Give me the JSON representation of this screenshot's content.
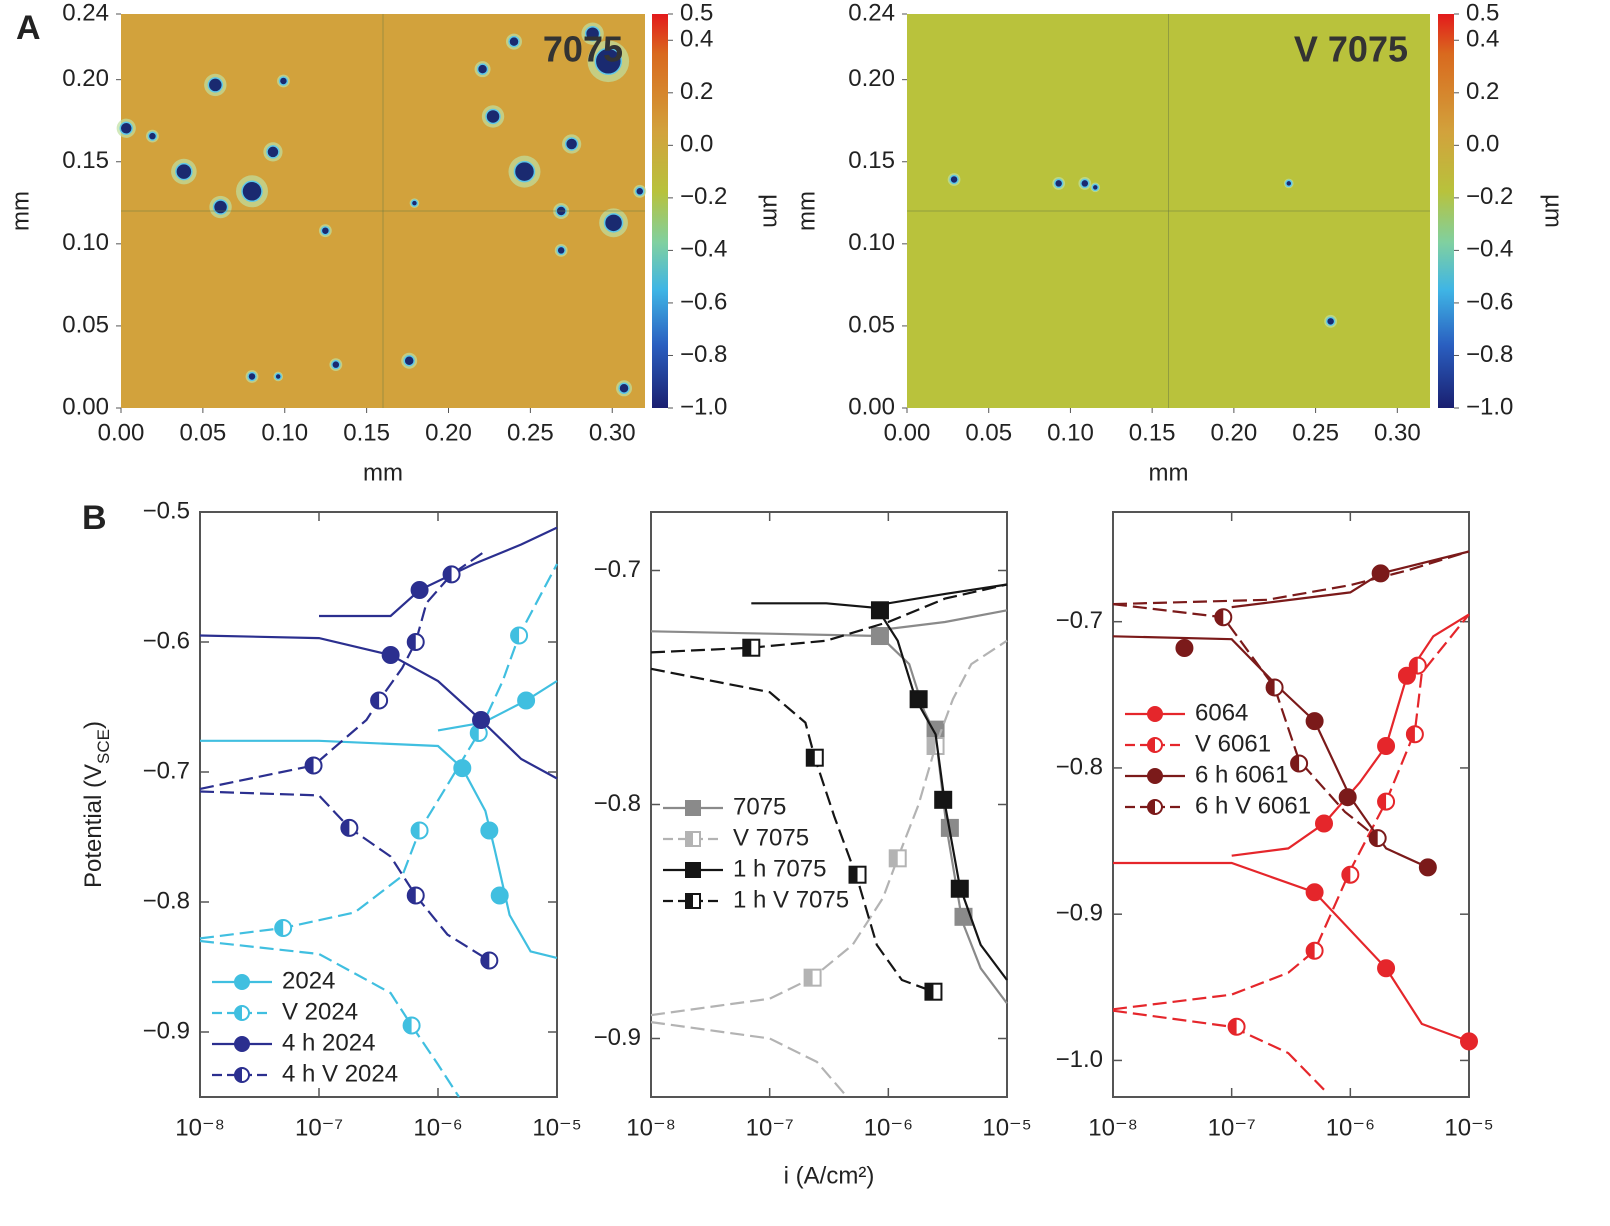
{
  "panels": [
    "A",
    "B"
  ],
  "chart_data": [
    {
      "type": "surface-map",
      "title": "7075",
      "xlabel": "mm",
      "ylabel": "mm",
      "color": "#d2a23c",
      "xlim": [
        0,
        0.32
      ],
      "ylim": [
        0,
        0.24
      ],
      "xticks": [
        {
          "value": 0,
          "label": "0.00"
        },
        0.05,
        {
          "value": 0.1,
          "label": "0.10"
        },
        0.15,
        {
          "value": 0.2,
          "label": "0.20"
        },
        0.25,
        {
          "value": 0.3,
          "label": "0.30"
        }
      ],
      "yticks": [
        {
          "value": 0,
          "label": "0.00"
        },
        0.05,
        {
          "value": 0.1,
          "label": "0.10"
        },
        0.15,
        {
          "value": 0.2,
          "label": "0.20"
        },
        0.24
      ],
      "colorbar": {
        "label": "µm",
        "lim": [
          -1,
          0.5
        ],
        "ticks": [
          0.5,
          0.4,
          0.2,
          {
            "value": 0,
            "label": "0.0"
          },
          {
            "value": -0.2,
            "label": "−0.2"
          },
          {
            "value": -0.4,
            "label": "−0.4"
          },
          {
            "value": -0.6,
            "label": "−0.6"
          },
          {
            "value": -0.8,
            "label": "−0.8"
          },
          {
            "value": -1,
            "label": "−1.0"
          }
        ]
      }
    },
    {
      "type": "surface-map",
      "title": "V 7075",
      "xlabel": "mm",
      "ylabel": "mm",
      "color": "#b9c23c",
      "xlim": [
        0,
        0.32
      ],
      "ylim": [
        0,
        0.24
      ],
      "xticks": [
        {
          "value": 0,
          "label": "0.00"
        },
        0.05,
        {
          "value": 0.1,
          "label": "0.10"
        },
        0.15,
        {
          "value": 0.2,
          "label": "0.20"
        },
        0.25,
        {
          "value": 0.3,
          "label": "0.30"
        }
      ],
      "yticks": [
        {
          "value": 0,
          "label": "0.00"
        },
        0.05,
        {
          "value": 0.1,
          "label": "0.10"
        },
        0.15,
        {
          "value": 0.2,
          "label": "0.20"
        },
        0.24
      ],
      "colorbar": {
        "label": "µm",
        "lim": [
          -1,
          0.5
        ],
        "ticks": [
          0.5,
          0.4,
          0.2,
          {
            "value": 0,
            "label": "0.0"
          },
          {
            "value": -0.2,
            "label": "−0.2"
          },
          {
            "value": -0.4,
            "label": "−0.4"
          },
          {
            "value": -0.6,
            "label": "−0.6"
          },
          {
            "value": -0.8,
            "label": "−0.8"
          },
          {
            "value": -1,
            "label": "−1.0"
          }
        ]
      }
    },
    {
      "type": "polarization",
      "xscale": "log",
      "ylabel": [
        "Potential (V",
        "SCE",
        ")"
      ],
      "legend": "lower left",
      "xlim": [
        1e-08,
        1e-05
      ],
      "ylim": [
        -0.95,
        -0.5
      ],
      "xticks": [
        {
          "value": 1e-08,
          "label": "10⁻⁸"
        },
        {
          "value": 1e-07,
          "label": "10⁻⁷"
        },
        {
          "value": 1e-06,
          "label": "10⁻⁶"
        },
        {
          "value": 1e-05,
          "label": "10⁻⁵"
        }
      ],
      "yticks": [
        {
          "value": -0.5,
          "label": "−0.5"
        },
        {
          "value": -0.6,
          "label": "−0.6"
        },
        {
          "value": -0.7,
          "label": "−0.7"
        },
        {
          "value": -0.8,
          "label": "−0.8"
        },
        {
          "value": -0.9,
          "label": "−0.9"
        }
      ],
      "series": [
        {
          "name": "2024",
          "color": "#40bfe0",
          "dash": false,
          "marker": "circle",
          "fill": "filled",
          "x": [
            1e-08,
            1e-07,
            1e-06,
            1.6e-06,
            2.5e-06,
            3e-06,
            4e-06,
            6e-06,
            1e-05,
            null,
            1e-06,
            2.4e-06,
            5.5e-06,
            1e-05
          ],
          "values": [
            -0.676,
            -0.676,
            -0.68,
            -0.697,
            -0.73,
            -0.76,
            -0.81,
            -0.838,
            -0.843,
            null,
            -0.668,
            -0.662,
            -0.645,
            -0.63
          ],
          "marker_x": [
            1.6e-06,
            2.7e-06,
            3.3e-06,
            5.5e-06
          ],
          "marker_values": [
            -0.697,
            -0.745,
            -0.795,
            -0.645
          ]
        },
        {
          "name": "V 2024",
          "color": "#40bfe0",
          "dash": true,
          "marker": "circle",
          "fill": "half",
          "x": [
            1e-08,
            5e-08,
            2e-07,
            5e-07,
            7e-07,
            1.2e-06,
            2.2e-06,
            3.5e-06,
            4.8e-06,
            1e-05,
            null,
            1e-08,
            1e-07,
            4e-07,
            6e-07,
            1e-06,
            1.5e-06
          ],
          "values": [
            -0.828,
            -0.82,
            -0.808,
            -0.78,
            -0.745,
            -0.71,
            -0.67,
            -0.63,
            -0.595,
            -0.54,
            null,
            -0.83,
            -0.84,
            -0.87,
            -0.895,
            -0.925,
            -0.95
          ],
          "marker_x": [
            5e-08,
            7e-07,
            2.2e-06,
            4.8e-06,
            6e-07
          ],
          "marker_values": [
            -0.82,
            -0.745,
            -0.67,
            -0.595,
            -0.895
          ]
        },
        {
          "name": "4 h 2024",
          "color": "#2b2f8f",
          "dash": false,
          "marker": "circle",
          "fill": "filled",
          "x": [
            1e-08,
            1e-07,
            4e-07,
            1e-06,
            2.3e-06,
            5e-06,
            1e-05,
            null,
            1e-07,
            4e-07,
            7e-07,
            2e-06,
            5e-06,
            1e-05
          ],
          "values": [
            -0.595,
            -0.597,
            -0.61,
            -0.63,
            -0.66,
            -0.69,
            -0.705,
            null,
            -0.58,
            -0.58,
            -0.56,
            -0.54,
            -0.525,
            -0.512
          ],
          "marker_x": [
            4e-07,
            2.3e-06,
            7e-07
          ],
          "marker_values": [
            -0.61,
            -0.66,
            -0.56
          ]
        },
        {
          "name": "4 h V 2024",
          "color": "#2b2f8f",
          "dash": true,
          "marker": "circle",
          "fill": "half",
          "x": [
            1e-08,
            1e-07,
            1.8e-07,
            4e-07,
            6.5e-07,
            1.2e-06,
            2.7e-06,
            null,
            1e-08,
            9e-08,
            2.5e-07,
            3.2e-07,
            5e-07,
            6.5e-07,
            8e-07,
            1.3e-06,
            2.5e-06
          ],
          "values": [
            -0.715,
            -0.718,
            -0.743,
            -0.765,
            -0.795,
            -0.825,
            -0.845,
            null,
            -0.713,
            -0.695,
            -0.66,
            -0.645,
            -0.62,
            -0.6,
            -0.57,
            -0.548,
            -0.53
          ],
          "marker_x": [
            1.8e-07,
            6.5e-07,
            2.7e-06,
            9e-08,
            3.2e-07,
            6.5e-07,
            1.3e-06
          ],
          "marker_values": [
            -0.743,
            -0.795,
            -0.845,
            -0.695,
            -0.645,
            -0.6,
            -0.548
          ]
        }
      ]
    },
    {
      "type": "polarization",
      "xscale": "log",
      "xlabel": "i (A/cm²)",
      "legend": "center left",
      "xlim": [
        1e-08,
        1e-05
      ],
      "ylim": [
        -0.925,
        -0.675
      ],
      "xticks": [
        {
          "value": 1e-08,
          "label": "10⁻⁸"
        },
        {
          "value": 1e-07,
          "label": "10⁻⁷"
        },
        {
          "value": 1e-06,
          "label": "10⁻⁶"
        },
        {
          "value": 1e-05,
          "label": "10⁻⁵"
        }
      ],
      "yticks": [
        {
          "value": -0.7,
          "label": "−0.7"
        },
        {
          "value": -0.8,
          "label": "−0.8"
        },
        {
          "value": -0.9,
          "label": "−0.9"
        }
      ],
      "series": [
        {
          "name": "7075",
          "color": "#8a8a8a",
          "dash": false,
          "marker": "square",
          "fill": "filled",
          "x": [
            1e-08,
            1e-07,
            8.5e-07,
            1.5e-06,
            2e-06,
            2.5e-06,
            3.1e-06,
            4.2e-06,
            6e-06,
            1e-05,
            null,
            1e-06,
            3e-06,
            1e-05
          ],
          "values": [
            -0.726,
            -0.727,
            -0.728,
            -0.74,
            -0.76,
            -0.77,
            -0.81,
            -0.85,
            -0.87,
            -0.885,
            null,
            -0.725,
            -0.722,
            -0.717
          ],
          "marker_x": [
            8.5e-07,
            2.5e-06,
            3.3e-06,
            4.3e-06
          ],
          "marker_values": [
            -0.728,
            -0.768,
            -0.81,
            -0.848
          ]
        },
        {
          "name": "V 7075",
          "color": "#b3b3b3",
          "dash": true,
          "marker": "square",
          "fill": "half",
          "x": [
            1e-08,
            1e-07,
            2.3e-07,
            5e-07,
            9e-07,
            1.2e-06,
            1.8e-06,
            2.5e-06,
            3.5e-06,
            5e-06,
            1e-05,
            null,
            1e-08,
            1e-07,
            2.5e-07,
            4.5e-07
          ],
          "values": [
            -0.89,
            -0.883,
            -0.874,
            -0.86,
            -0.84,
            -0.823,
            -0.8,
            -0.775,
            -0.755,
            -0.74,
            -0.73,
            null,
            -0.893,
            -0.9,
            -0.91,
            -0.925
          ],
          "marker_x": [
            2.3e-07,
            1.2e-06,
            2.5e-06
          ],
          "marker_values": [
            -0.874,
            -0.823,
            -0.775
          ]
        },
        {
          "name": "1 h 7075",
          "color": "#151515",
          "dash": false,
          "marker": "square",
          "fill": "filled",
          "x": [
            7e-08,
            3e-07,
            8e-07,
            1.2e-06,
            1.7e-06,
            2.5e-06,
            3e-06,
            4e-06,
            6e-06,
            1e-05,
            null,
            1e-06,
            3e-06,
            1e-05
          ],
          "values": [
            -0.714,
            -0.714,
            -0.716,
            -0.73,
            -0.755,
            -0.77,
            -0.8,
            -0.835,
            -0.86,
            -0.875,
            null,
            -0.714,
            -0.71,
            -0.706
          ],
          "marker_x": [
            8.5e-07,
            1.8e-06,
            2.9e-06,
            4e-06
          ],
          "marker_values": [
            -0.717,
            -0.755,
            -0.798,
            -0.836
          ]
        },
        {
          "name": "1 h V 7075",
          "color": "#151515",
          "dash": true,
          "marker": "square",
          "fill": "half",
          "x": [
            1e-08,
            7e-08,
            3e-07,
            1e-06,
            3e-06,
            1e-05,
            null,
            1e-08,
            1e-07,
            2e-07,
            2.4e-07,
            3.5e-07,
            5.5e-07,
            8e-07,
            1.3e-06,
            2.4e-06
          ],
          "values": [
            -0.735,
            -0.733,
            -0.73,
            -0.722,
            -0.712,
            -0.706,
            null,
            -0.742,
            -0.752,
            -0.765,
            -0.78,
            -0.805,
            -0.832,
            -0.86,
            -0.875,
            -0.88
          ],
          "marker_x": [
            7e-08,
            2.4e-07,
            5.5e-07,
            2.4e-06
          ],
          "marker_values": [
            -0.733,
            -0.78,
            -0.83,
            -0.88
          ]
        }
      ]
    },
    {
      "type": "polarization",
      "xscale": "log",
      "legend": "upper left",
      "xlim": [
        1e-08,
        1e-05
      ],
      "ylim": [
        -1.025,
        -0.625
      ],
      "xticks": [
        {
          "value": 1e-08,
          "label": "10⁻⁸"
        },
        {
          "value": 1e-07,
          "label": "10⁻⁷"
        },
        {
          "value": 1e-06,
          "label": "10⁻⁶"
        },
        {
          "value": 1e-05,
          "label": "10⁻⁵"
        }
      ],
      "yticks": [
        {
          "value": -0.7,
          "label": "−0.7"
        },
        {
          "value": -0.8,
          "label": "−0.8"
        },
        {
          "value": -0.9,
          "label": "−0.9"
        },
        {
          "value": -1,
          "label": "−1.0"
        }
      ],
      "series": [
        {
          "name": "6064",
          "color": "#e5262b",
          "dash": false,
          "marker": "circle",
          "fill": "filled",
          "x": [
            1e-08,
            1e-07,
            5e-07,
            2e-06,
            4e-06,
            1e-05,
            null,
            1e-07,
            3e-07,
            6e-07,
            1.2e-06,
            2e-06,
            3e-06,
            5e-06,
            1e-05
          ],
          "values": [
            -0.865,
            -0.865,
            -0.885,
            -0.937,
            -0.975,
            -0.987,
            null,
            -0.86,
            -0.855,
            -0.838,
            -0.81,
            -0.785,
            -0.737,
            -0.71,
            -0.695
          ],
          "marker_x": [
            5e-07,
            2e-06,
            1e-05,
            6e-07,
            2e-06,
            3e-06
          ],
          "marker_values": [
            -0.885,
            -0.937,
            -0.987,
            -0.838,
            -0.785,
            -0.737
          ]
        },
        {
          "name": "V 6061",
          "color": "#e5262b",
          "dash": true,
          "marker": "circle",
          "fill": "half",
          "x": [
            1e-08,
            1e-07,
            3e-07,
            6e-07,
            null,
            1e-08,
            1e-07,
            3e-07,
            5e-07,
            1e-06,
            2e-06,
            3.5e-06,
            4e-06,
            1e-05
          ],
          "values": [
            -0.966,
            -0.977,
            -0.995,
            -1.02,
            null,
            -0.965,
            -0.955,
            -0.94,
            -0.925,
            -0.87,
            -0.823,
            -0.775,
            -0.735,
            -0.695
          ],
          "marker_x": [
            1.1e-07,
            5e-07,
            1e-06,
            2e-06,
            3.5e-06,
            3.7e-06
          ],
          "marker_values": [
            -0.977,
            -0.925,
            -0.873,
            -0.823,
            -0.777,
            -0.73
          ]
        },
        {
          "name": "6 h 6061",
          "color": "#7b1a1a",
          "dash": false,
          "marker": "circle",
          "fill": "filled",
          "x": [
            1e-08,
            1e-07,
            2.5e-07,
            5e-07,
            1e-06,
            2e-06,
            4.5e-06,
            null,
            1e-07,
            1e-06,
            1.8e-06,
            1e-05
          ],
          "values": [
            -0.71,
            -0.712,
            -0.745,
            -0.768,
            -0.82,
            -0.855,
            -0.868,
            null,
            -0.69,
            -0.68,
            -0.667,
            -0.652
          ],
          "marker_x": [
            4e-08,
            5e-07,
            9.5e-07,
            4.5e-06,
            1.8e-06
          ],
          "marker_values": [
            -0.718,
            -0.768,
            -0.82,
            -0.868,
            -0.667
          ]
        },
        {
          "name": "6 h V 6061",
          "color": "#7b1a1a",
          "dash": true,
          "marker": "circle",
          "fill": "half",
          "x": [
            1e-08,
            8.5e-08,
            2.3e-07,
            3.7e-07,
            9e-07,
            1.7e-06,
            null,
            1e-08,
            2e-07,
            1e-06,
            3e-06,
            1e-05
          ],
          "values": [
            -0.688,
            -0.697,
            -0.745,
            -0.795,
            -0.83,
            -0.848,
            null,
            -0.688,
            -0.685,
            -0.675,
            -0.665,
            -0.652
          ],
          "marker_x": [
            8.5e-08,
            2.3e-07,
            3.7e-07,
            1.7e-06
          ],
          "marker_values": [
            -0.697,
            -0.745,
            -0.797,
            -0.848
          ]
        }
      ]
    }
  ]
}
